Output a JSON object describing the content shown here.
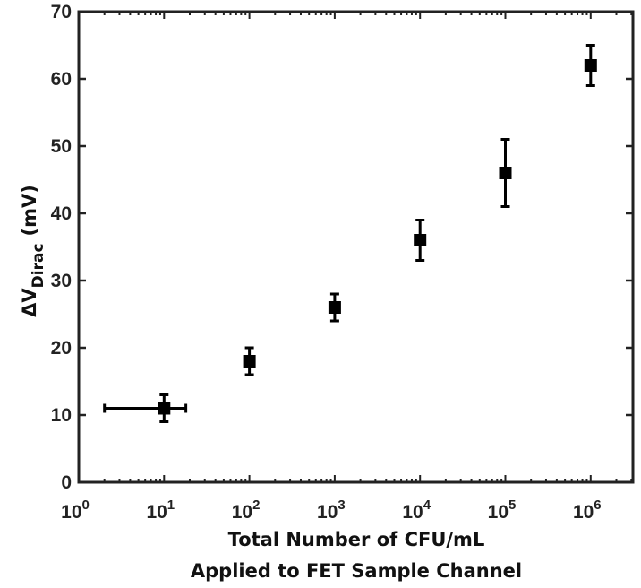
{
  "chart_data": {
    "type": "scatter",
    "title": "",
    "xlabel": "Total Number of CFU/mL\nApplied to FET Sample Channel",
    "xlabel_lines": [
      "Total Number of CFU/mL",
      "Applied to FET Sample Channel"
    ],
    "ylabel": "ΔV_Dirac (mV)",
    "ylabel_parts": {
      "delta": "Δ",
      "v": "V",
      "sub": "Dirac",
      "unit": "(mV)"
    },
    "xscale": "log",
    "xlim": [
      1,
      3000000
    ],
    "ylim": [
      0,
      70
    ],
    "xticks": [
      {
        "base": "10",
        "exp": "0",
        "value": 1
      },
      {
        "base": "10",
        "exp": "1",
        "value": 10
      },
      {
        "base": "10",
        "exp": "2",
        "value": 100
      },
      {
        "base": "10",
        "exp": "3",
        "value": 1000
      },
      {
        "base": "10",
        "exp": "4",
        "value": 10000
      },
      {
        "base": "10",
        "exp": "5",
        "value": 100000
      },
      {
        "base": "10",
        "exp": "6",
        "value": 1000000
      }
    ],
    "yticks": [
      0,
      10,
      20,
      30,
      40,
      50,
      60,
      70
    ],
    "grid": false,
    "legend": null,
    "marker": "square",
    "color": "#000000",
    "series": [
      {
        "name": "ΔV_Dirac",
        "points": [
          {
            "x": 10,
            "y": 11,
            "yerr": 2,
            "xerr_low": 2,
            "xerr_high": 18
          },
          {
            "x": 100,
            "y": 18,
            "yerr": 2
          },
          {
            "x": 1000,
            "y": 26,
            "yerr": 2
          },
          {
            "x": 10000,
            "y": 36,
            "yerr": 3
          },
          {
            "x": 100000,
            "y": 46,
            "yerr": 5
          },
          {
            "x": 1000000,
            "y": 62,
            "yerr": 3
          }
        ]
      }
    ]
  }
}
